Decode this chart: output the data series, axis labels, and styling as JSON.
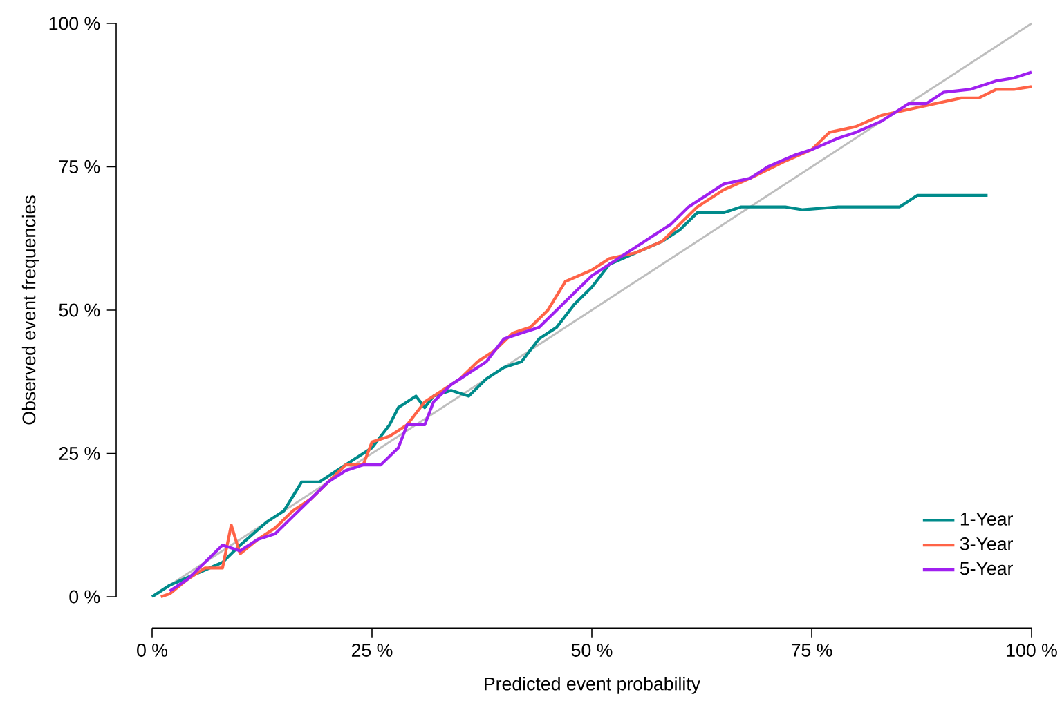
{
  "chart_data": {
    "type": "line",
    "xlabel": "Predicted event probability",
    "ylabel": "Observed event frequencies",
    "xlim": [
      0,
      100
    ],
    "ylim": [
      0,
      100
    ],
    "xticks": [
      {
        "value": 0,
        "label": "0 %"
      },
      {
        "value": 25,
        "label": "25 %"
      },
      {
        "value": 50,
        "label": "50 %"
      },
      {
        "value": 75,
        "label": "75 %"
      },
      {
        "value": 100,
        "label": "100 %"
      }
    ],
    "yticks": [
      {
        "value": 0,
        "label": "0 %"
      },
      {
        "value": 25,
        "label": "25 %"
      },
      {
        "value": 50,
        "label": "50 %"
      },
      {
        "value": 75,
        "label": "75 %"
      },
      {
        "value": 100,
        "label": "100 %"
      }
    ],
    "grid": false,
    "legend": "bottom right",
    "marker": "none",
    "line_style": "solid",
    "series": [
      {
        "color": "#bebebe",
        "x": [
          0,
          100
        ],
        "values": [
          0,
          100
        ]
      },
      {
        "name": "1-Year",
        "color": "#008b8b",
        "x": [
          0,
          2,
          5,
          8,
          10,
          13,
          15,
          17,
          19,
          21,
          23,
          25,
          27,
          28,
          30,
          31,
          32,
          34,
          36,
          38,
          40,
          42,
          44,
          46,
          48,
          50,
          52,
          55,
          58,
          60,
          62,
          65,
          67,
          72,
          74,
          78,
          85,
          87,
          95
        ],
        "values": [
          0,
          2,
          4,
          6,
          9,
          13,
          15,
          20,
          20,
          22,
          24,
          26,
          30,
          33,
          35,
          33,
          35,
          36,
          35,
          38,
          40,
          41,
          45,
          47,
          51,
          54,
          58,
          60,
          62,
          64,
          67,
          67,
          68,
          68,
          67.5,
          68,
          68,
          70,
          70
        ]
      },
      {
        "name": "3-Year",
        "color": "#ff6347",
        "x": [
          1,
          2,
          4,
          6,
          8,
          9,
          10,
          12,
          14,
          16,
          18,
          20,
          22,
          24,
          25,
          27,
          29,
          31,
          33,
          35,
          37,
          39,
          41,
          43,
          45,
          47,
          50,
          52,
          55,
          58,
          60,
          62,
          65,
          68,
          72,
          75,
          77,
          80,
          83,
          86,
          89,
          92,
          94,
          96,
          98,
          100
        ],
        "values": [
          0,
          0.5,
          3,
          5,
          5,
          12.5,
          7.5,
          10,
          12,
          15,
          17,
          20,
          23,
          23,
          27,
          28,
          30,
          34,
          36,
          38,
          41,
          43,
          46,
          47,
          50,
          55,
          57,
          59,
          60,
          62,
          65,
          68,
          71,
          73,
          76,
          78,
          81,
          82,
          84,
          85,
          86,
          87,
          87,
          88.5,
          88.5,
          89
        ]
      },
      {
        "name": "5-Year",
        "color": "#a020f0",
        "x": [
          2,
          4,
          6,
          8,
          10,
          12,
          14,
          16,
          18,
          20,
          22,
          24,
          26,
          28,
          29,
          31,
          32,
          34,
          36,
          38,
          40,
          42,
          44,
          46,
          48,
          50,
          53,
          56,
          59,
          61,
          63,
          65,
          68,
          70,
          73,
          75,
          78,
          80,
          83,
          86,
          88,
          90,
          93,
          96,
          98,
          100
        ],
        "values": [
          1,
          3,
          6,
          9,
          8,
          10,
          11,
          14,
          17,
          20,
          22,
          23,
          23,
          26,
          30,
          30,
          34,
          37,
          39,
          41,
          45,
          46,
          47,
          50,
          53,
          56,
          59,
          62,
          65,
          68,
          70,
          72,
          73,
          75,
          77,
          78,
          80,
          81,
          83,
          86,
          86,
          88,
          88.5,
          90,
          90.5,
          91.5
        ]
      }
    ]
  }
}
